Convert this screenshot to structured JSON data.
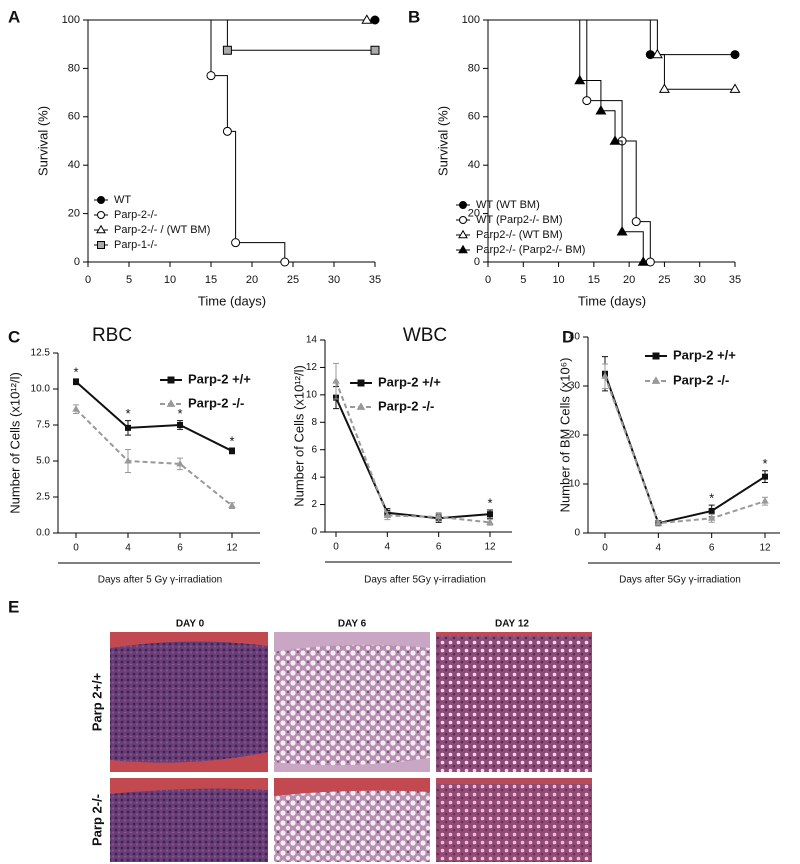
{
  "chart_data": [
    {
      "type": "step",
      "panel_label": "A",
      "x_label": "Time (days)",
      "y_label": "Survival (%)",
      "xlim": [
        0,
        35
      ],
      "xticks": [
        0,
        5,
        10,
        15,
        20,
        25,
        30,
        35
      ],
      "ylim": [
        0,
        100
      ],
      "yticks": [
        0,
        20,
        40,
        60,
        80,
        100
      ],
      "series": [
        {
          "name": "WT",
          "color": "#000000",
          "marker": "circle",
          "marker_fill": "#000000",
          "x": [
            0,
            35
          ],
          "values": [
            100,
            100
          ]
        },
        {
          "name": "Parp-2-/-",
          "color": "#000000",
          "marker": "circle",
          "marker_fill": "#ffffff",
          "x": [
            0,
            15,
            17,
            18,
            24
          ],
          "values": [
            100,
            77,
            54,
            8,
            0
          ]
        },
        {
          "name": "Parp-2-/- / (WT BM)",
          "color": "#000000",
          "marker": "triangle",
          "marker_fill": "#ffffff",
          "x": [
            0,
            34
          ],
          "values": [
            100,
            100
          ]
        },
        {
          "name": "Parp-1-/-",
          "color": "#000000",
          "marker": "square",
          "marker_fill": "#aaaaaa",
          "x": [
            0,
            17,
            35
          ],
          "values": [
            100,
            87.5,
            87.5
          ]
        }
      ]
    },
    {
      "type": "step",
      "panel_label": "B",
      "x_label": "Time (days)",
      "y_label": "Survival (%)",
      "xlim": [
        0,
        35
      ],
      "xticks": [
        0,
        5,
        10,
        15,
        20,
        25,
        30,
        35
      ],
      "ylim": [
        0,
        100
      ],
      "yticks": [
        0,
        20,
        40,
        60,
        80,
        100
      ],
      "series": [
        {
          "name": "WT (WT BM)",
          "color": "#000000",
          "marker": "circle",
          "marker_fill": "#000000",
          "x": [
            0,
            23,
            35
          ],
          "values": [
            100,
            85.7,
            85.7
          ]
        },
        {
          "name": "WT (Parp2-/- BM)",
          "color": "#000000",
          "marker": "circle",
          "marker_fill": "#ffffff",
          "x": [
            0,
            14,
            19,
            21,
            23
          ],
          "values": [
            100,
            66.7,
            50,
            16.7,
            0
          ]
        },
        {
          "name": "Parp2-/- (WT BM)",
          "color": "#000000",
          "marker": "triangle",
          "marker_fill": "#ffffff",
          "x": [
            0,
            24,
            25,
            35
          ],
          "values": [
            100,
            85.7,
            71.4,
            71.4
          ]
        },
        {
          "name": "Parp2-/- (Parp2-/- BM)",
          "color": "#000000",
          "marker": "triangle",
          "marker_fill": "#000000",
          "x": [
            0,
            13,
            16,
            18,
            19,
            22
          ],
          "values": [
            100,
            75,
            62.5,
            50,
            12.5,
            0
          ]
        }
      ]
    },
    {
      "type": "line",
      "panel_label": "C",
      "title": "RBC",
      "x_label": "Days after 5 Gy γ-irradiation",
      "y_label": "Number of Cells (x10¹²/l)",
      "categories": [
        "0",
        "4",
        "6",
        "12"
      ],
      "ylim": [
        0,
        12.5
      ],
      "yticks": [
        {
          "value": 0,
          "label": "0.0"
        },
        2.5,
        {
          "value": 5,
          "label": "5.0"
        },
        7.5,
        {
          "value": 10,
          "label": "10.0"
        },
        12.5
      ],
      "significance": [
        "*",
        "*",
        "*",
        "*"
      ],
      "series": [
        {
          "name": "Parp-2 +/+",
          "color": "#111111",
          "line_style": "solid",
          "marker": "square",
          "values": [
            10.5,
            7.3,
            7.5,
            5.7
          ],
          "errors": [
            0.2,
            0.5,
            0.3,
            0.2
          ]
        },
        {
          "name": "Parp-2 -/-",
          "color": "#999999",
          "line_style": "dashed",
          "marker": "triangle",
          "values": [
            8.6,
            5.0,
            4.8,
            1.9
          ],
          "errors": [
            0.3,
            0.8,
            0.4,
            0.2
          ]
        }
      ]
    },
    {
      "type": "line",
      "title": "WBC",
      "x_label": "Days after 5Gy γ-irradiation",
      "y_label": "Number of Cells (x10¹²/l)",
      "categories": [
        "0",
        "4",
        "6",
        "12"
      ],
      "ylim": [
        0,
        14
      ],
      "yticks": [
        0,
        2,
        4,
        6,
        8,
        10,
        12,
        14
      ],
      "significance": [
        null,
        null,
        null,
        "*"
      ],
      "series": [
        {
          "name": "Parp-2 +/+",
          "color": "#111111",
          "line_style": "solid",
          "marker": "square",
          "values": [
            9.8,
            1.4,
            1.0,
            1.3
          ],
          "errors": [
            0.8,
            0.3,
            0.3,
            0.3
          ]
        },
        {
          "name": "Parp-2 -/-",
          "color": "#999999",
          "line_style": "dashed",
          "marker": "triangle",
          "values": [
            11.0,
            1.2,
            1.1,
            0.7
          ],
          "errors": [
            1.3,
            0.3,
            0.3,
            0.2
          ]
        }
      ]
    },
    {
      "type": "line",
      "panel_label": "D",
      "x_label": "Days after 5Gy γ-irradiation",
      "y_label": "Number of BM Cells (x10⁶)",
      "categories": [
        "0",
        "4",
        "6",
        "12"
      ],
      "ylim": [
        0,
        40
      ],
      "yticks": [
        0,
        10,
        20,
        30,
        40
      ],
      "significance": [
        null,
        null,
        "*",
        "*"
      ],
      "series": [
        {
          "name": "Parp-2 +/+",
          "color": "#111111",
          "line_style": "solid",
          "marker": "square",
          "values": [
            32.5,
            2,
            4.5,
            11.5
          ],
          "errors": [
            3.5,
            0.3,
            1.2,
            1.2
          ]
        },
        {
          "name": "Parp-2 -/-",
          "color": "#999999",
          "line_style": "dashed",
          "marker": "triangle",
          "values": [
            32,
            2,
            3,
            6.5
          ],
          "errors": [
            2.5,
            0.3,
            0.8,
            0.8
          ]
        }
      ]
    }
  ],
  "histology": {
    "panel_label": "E",
    "columns": [
      "DAY 0",
      "DAY 6",
      "DAY 12"
    ],
    "rows": [
      "Parp 2+/+",
      "Parp 2-/-"
    ]
  }
}
